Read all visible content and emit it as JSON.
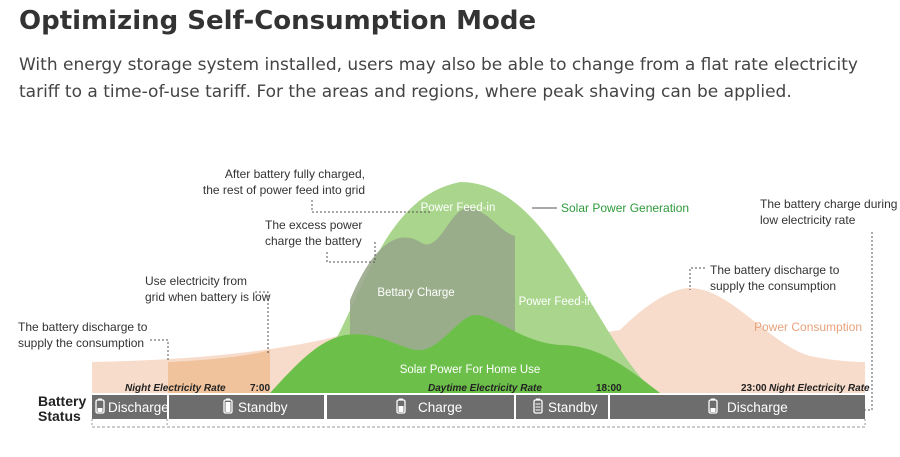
{
  "header": {
    "title": "Optimizing Self-Consumption Mode",
    "intro": "With energy storage system installed, users may also be able to change from a flat rate electricity tariff to a time-of-use tariff. For the areas and regions, where peak shaving can be applied."
  },
  "colors": {
    "solar_green": "#8ecb6a",
    "solar_light": "#a9d68c",
    "home_use_green": "#6cc04a",
    "battery_charge_gray": "#9aa98e",
    "consumption_peach": "#f8dccb",
    "night_orange": "#f0c39c",
    "status_bar": "#6d6d6d",
    "solar_label": "#2e9a3c",
    "consumption_label": "#e8a27c"
  },
  "annotations": {
    "fully_charged": [
      "After battery fully charged,",
      "the rest of power feed into grid"
    ],
    "excess_power": [
      "The excess power",
      "charge the battery"
    ],
    "use_grid": [
      "Use electricity from",
      "grid when battery is low"
    ],
    "discharge_left": [
      "The battery discharge to",
      "supply the consumption"
    ],
    "discharge_right": [
      "The battery discharge to",
      "supply the consumption"
    ],
    "charge_low_rate": [
      "The battery charge during",
      "low electricity rate"
    ]
  },
  "legend": {
    "solar_power_generation": "Solar Power Generation",
    "power_consumption": "Power Consumption"
  },
  "areas": {
    "power_feed_in_top": "Power Feed-in",
    "power_feed_in_right": "Power Feed-in",
    "battery_charge": "Bettary Charge",
    "home_use": "Solar Power For Home Use"
  },
  "timeline": {
    "night_left": "Night Electricity Rate",
    "time_0700": "7:00",
    "daytime": "Daytime Electricity Rate",
    "time_1800": "18:00",
    "time_2300": "23:00",
    "night_right": "Night Electricity Rate"
  },
  "battery_status": {
    "label_line1": "Battery",
    "label_line2": "Status",
    "segments": [
      {
        "label": "Discharge",
        "icon": "battery-low-icon"
      },
      {
        "label": "Standby",
        "icon": "battery-icon"
      },
      {
        "label": "Charge",
        "icon": "battery-charging-icon"
      },
      {
        "label": "Standby",
        "icon": "battery-full-icon"
      },
      {
        "label": "Discharge",
        "icon": "battery-low-icon"
      }
    ]
  }
}
